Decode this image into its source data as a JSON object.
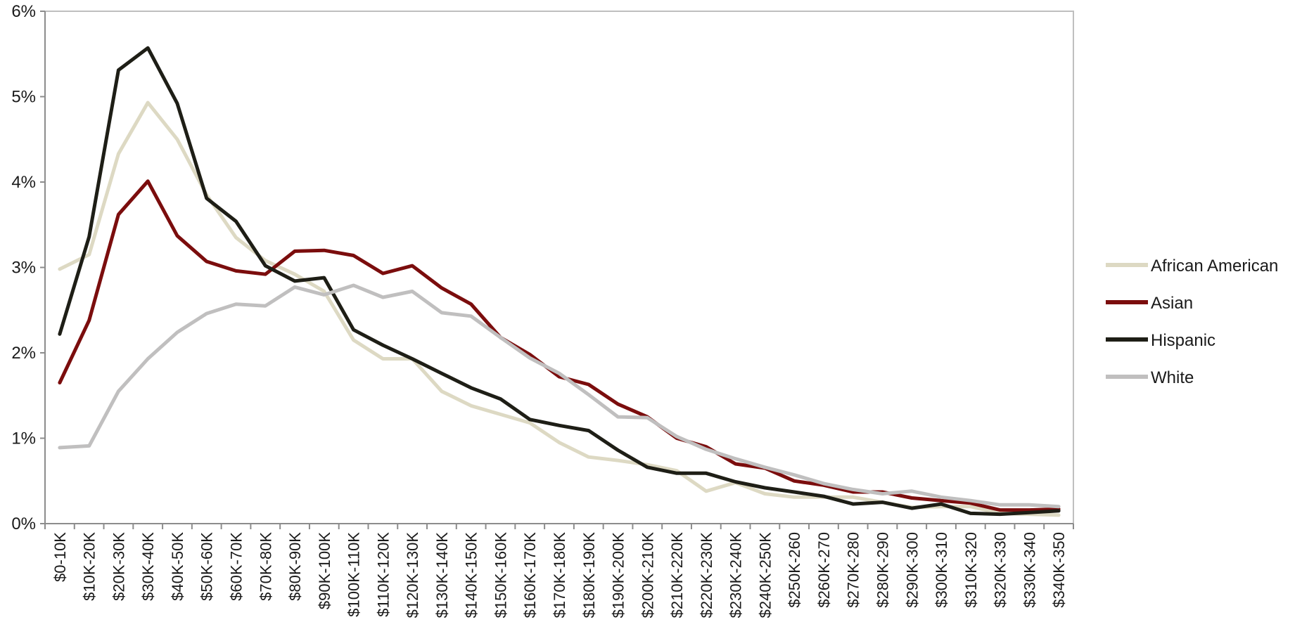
{
  "chart_data": {
    "type": "line",
    "title": "",
    "xlabel": "",
    "ylabel": "",
    "ylim": [
      0,
      6
    ],
    "yticks": [
      "0%",
      "1%",
      "2%",
      "3%",
      "4%",
      "5%",
      "6%"
    ],
    "grid": false,
    "legend_position": "right",
    "categories": [
      "$0-10K",
      "$10K-20K",
      "$20K-30K",
      "$30K-40K",
      "$40K-50K",
      "$50K-60K",
      "$60K-70K",
      "$70K-80K",
      "$80K-90K",
      "$90K-100K",
      "$100K-110K",
      "$110K-120K",
      "$120K-130K",
      "$130K-140K",
      "$140K-150K",
      "$150K-160K",
      "$160K-170K",
      "$170K-180K",
      "$180K-190K",
      "$190K-200K",
      "$200K-210K",
      "$210K-220K",
      "$220K-230K",
      "$230K-240K",
      "$240K-250K",
      "$250K-260",
      "$260K-270",
      "$270K-280",
      "$280K-290",
      "$290K-300",
      "$300K-310",
      "$310K-320",
      "$320K-330",
      "$330K-340",
      "$340K-350"
    ],
    "series": [
      {
        "name": "African American",
        "color": "#ddd9c3",
        "values": [
          2.98,
          3.15,
          4.33,
          4.93,
          4.5,
          3.85,
          3.35,
          3.08,
          2.92,
          2.72,
          2.15,
          1.93,
          1.93,
          1.55,
          1.38,
          1.28,
          1.18,
          0.95,
          0.78,
          0.74,
          0.69,
          0.62,
          0.38,
          0.48,
          0.35,
          0.31,
          0.31,
          0.31,
          0.25,
          0.19,
          0.2,
          0.2,
          0.12,
          0.11,
          0.1
        ]
      },
      {
        "name": "Asian",
        "color": "#7b0d0d",
        "values": [
          1.65,
          2.38,
          3.62,
          4.01,
          3.37,
          3.07,
          2.96,
          2.92,
          3.19,
          3.2,
          3.14,
          2.93,
          3.02,
          2.76,
          2.57,
          2.18,
          1.98,
          1.72,
          1.63,
          1.4,
          1.25,
          1.0,
          0.9,
          0.7,
          0.65,
          0.5,
          0.45,
          0.37,
          0.37,
          0.3,
          0.27,
          0.24,
          0.16,
          0.16,
          0.17
        ]
      },
      {
        "name": "Hispanic",
        "color": "#1e1e16",
        "values": [
          2.22,
          3.36,
          5.31,
          5.57,
          4.92,
          3.81,
          3.54,
          3.02,
          2.84,
          2.88,
          2.27,
          2.09,
          1.93,
          1.76,
          1.59,
          1.46,
          1.22,
          1.15,
          1.09,
          0.86,
          0.66,
          0.59,
          0.59,
          0.49,
          0.42,
          0.37,
          0.32,
          0.23,
          0.25,
          0.18,
          0.23,
          0.12,
          0.11,
          0.13,
          0.15
        ]
      },
      {
        "name": "White",
        "color": "#c0bfbf",
        "values": [
          0.89,
          0.91,
          1.55,
          1.93,
          2.24,
          2.46,
          2.57,
          2.55,
          2.77,
          2.68,
          2.79,
          2.65,
          2.72,
          2.47,
          2.43,
          2.18,
          1.94,
          1.76,
          1.51,
          1.25,
          1.24,
          1.02,
          0.87,
          0.76,
          0.66,
          0.57,
          0.47,
          0.4,
          0.35,
          0.38,
          0.31,
          0.27,
          0.22,
          0.22,
          0.2
        ]
      }
    ]
  }
}
